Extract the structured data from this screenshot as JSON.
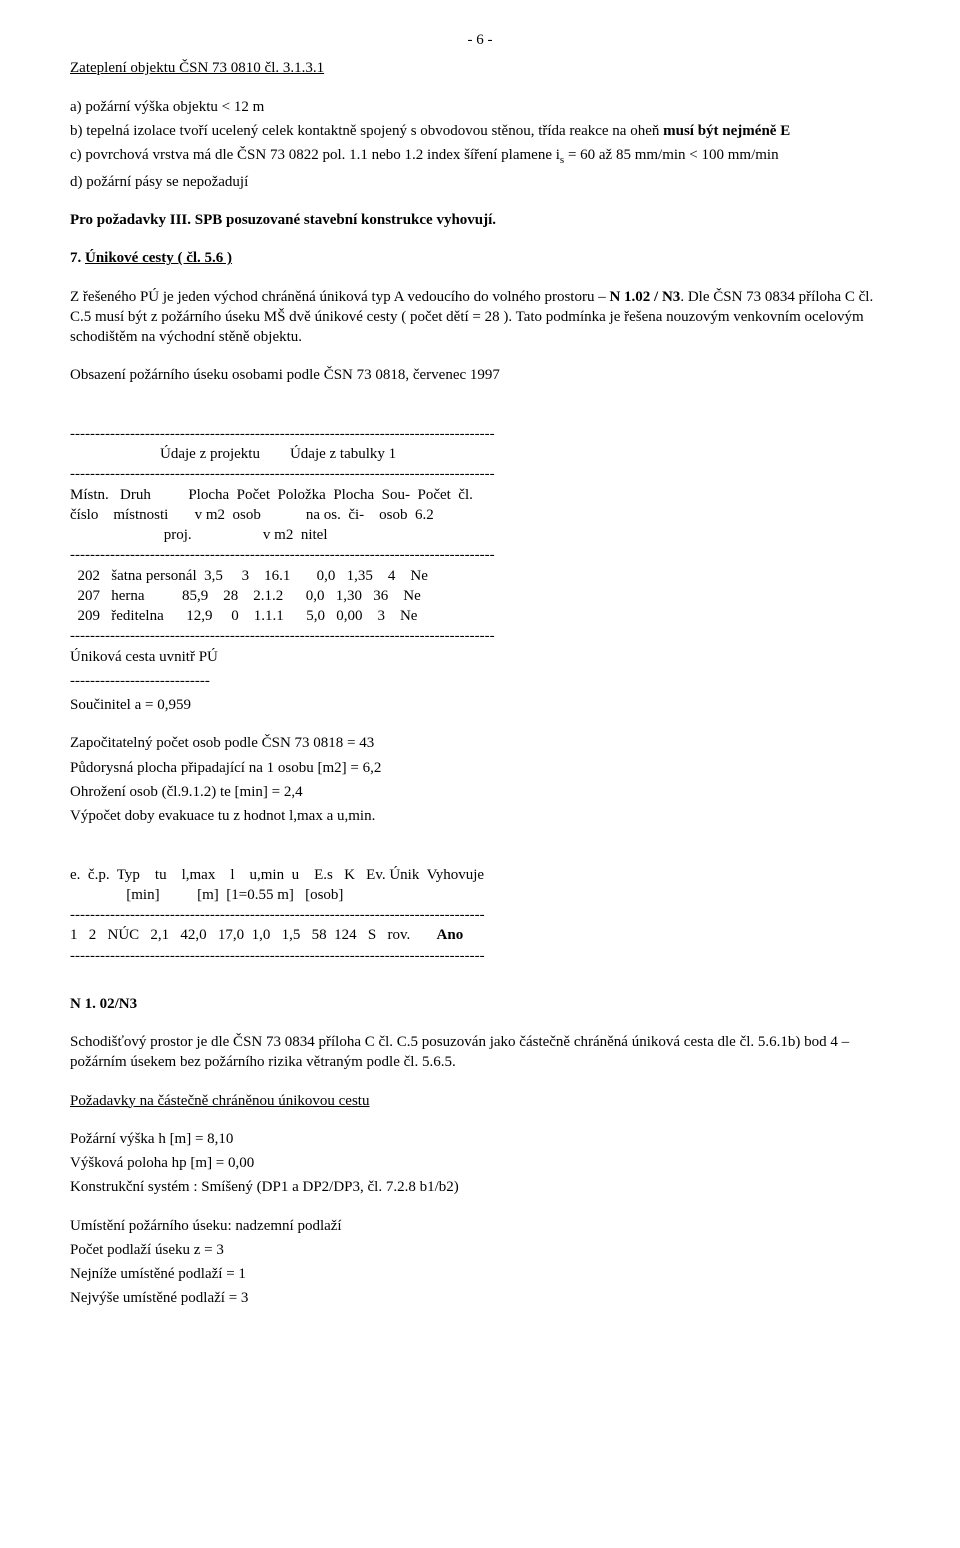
{
  "pageNum": "- 6 -",
  "sectionTitle": "Zateplení objektu ČSN 73 0810 čl. 3.1.3.1",
  "a": "a) požární výška objektu < 12 m",
  "b1": "b) tepelná izolace tvoří ucelený celek kontaktně spojený s obvodovou stěnou, třída reakce na oheň ",
  "b2": "musí být nejméně E",
  "c": "c) povrchová vrstva  má dle ČSN 73 0822 pol. 1.1 nebo 1.2 index šíření plamene i",
  "cSub": "s",
  "cEnd": " = 60 až 85 mm/min < 100  mm/min",
  "d": "d) požární pásy se nepožadují",
  "req": "Pro požadavky III.  SPB posuzované stavební konstrukce vyhovují.",
  "sec7Num": "7. ",
  "sec7Title": "Únikové cesty ( čl. 5.6 )",
  "p7a1": "Z řešeného PÚ je jeden východ chráněná úniková typ A vedoucího do volného prostoru – ",
  "p7a2": "N 1.02 / N3",
  "p7a3": ". Dle ČSN 73 0834 příloha C čl. C.5 musí být z požárního úseku MŠ dvě únikové cesty ( počet dětí = 28 ). Tato podmínka je řešena nouzovým venkovním ocelovým schodištěm na východní stěně objektu.",
  "obsTit": "Obsazení požárního úseku osobami podle ČSN 73 0818, červenec 1997",
  "dashLine": "-------------------------------------------------------------------------------------",
  "hdrLine": "                        Údaje z projektu        Údaje z tabulky 1",
  "colHdr1": "Místn.   Druh          Plocha  Počet  Položka  Plocha  Sou-  Počet  čl.",
  "colHdr2": "číslo    místnosti       v m2  osob            na os.  či-    osob  6.2",
  "colHdr3": "                         proj.                   v m2  nitel",
  "row1": "  202   šatna personál  3,5     3    16.1       0,0   1,35    4    Ne",
  "row2": "  207   herna          85,9    28    2.1.2      0,0   1,30   36    Ne",
  "row3": "  209   ředitelna      12,9     0    1.1.1      5,0   0,00    3    Ne",
  "escIn": "Úniková cesta uvnitř PÚ",
  "shortDash": "----------------------------",
  "coef": "Součinitel a = 0,959",
  "calc1": "Započitatelný počet osob podle ČSN 73 0818 =    43",
  "calc2": "Půdorysná plocha připadající na 1 osobu [m2] =      6,2",
  "calc3": "Ohrožení osob (čl.9.1.2) te [min] =      2,4",
  "calc4": "Výpočet doby evakuace tu z hodnot l,max a u,min.",
  "evHdr1": "e.  č.p.  Typ    tu    l,max    l    u,min  u    E.s   K   Ev. Únik  Vyhovuje",
  "evHdr2": "               [min]          [m]  [1=0.55 m]   [osob]",
  "dashLine2": "-----------------------------------------------------------------------------------",
  "evRow1a": "1   2   NÚC   2,1   42,0   17,0  1,0   1,5   58  124   S   rov.       ",
  "evRow1b": "Ano",
  "n102": "N 1. 02/N3",
  "schod": "Schodišťový prostor je dle ČSN 73 0834 příloha C čl. C.5 posuzován jako částečně chráněná úniková cesta dle čl. 5.6.1b) bod 4 – požárním úsekem bez požárního rizika větraným podle čl. 5.6.5.",
  "reqTitle": "Požadavky na částečně chráněnou únikovou cestu",
  "rq1": "Požární výška  h  [m]    =     8,10",
  "rq2": "Výšková poloha hp [m]    =     0,00",
  "rq3": "Konstrukční systém : Smíšený (DP1 a DP2/DP3, čl. 7.2.8 b1/b2)",
  "rq4": "Umístění požárního úseku: nadzemní podlaží",
  "rq5": "Počet podlaží úseku z      =     3",
  "rq6": "Nejníže umístěné podlaží =     1",
  "rq7": "Nejvýše umístěné podlaží =     3"
}
